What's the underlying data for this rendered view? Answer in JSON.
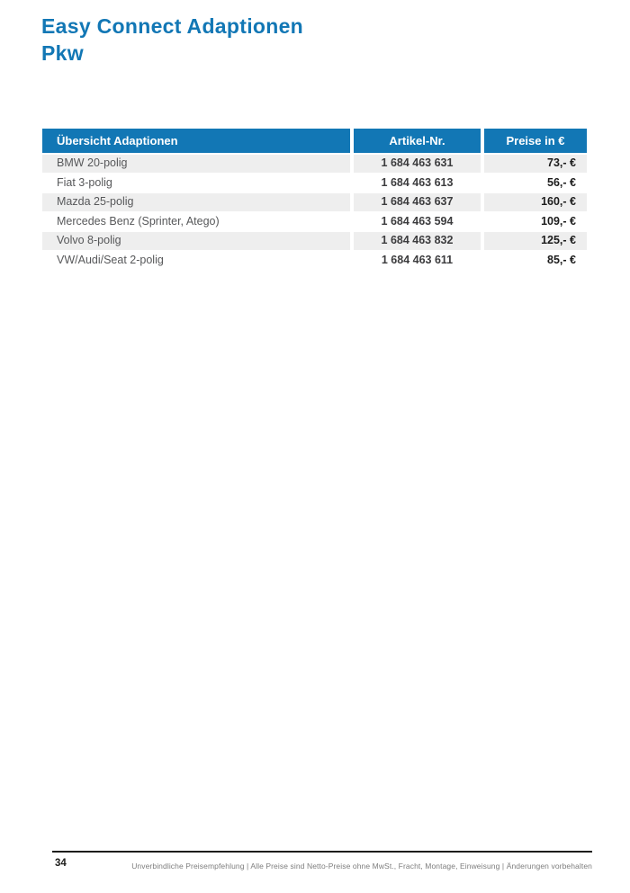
{
  "page": {
    "title_line1": "Easy Connect Adaptionen",
    "title_line2": "Pkw",
    "page_number": "34",
    "footer_note": "Unverbindliche Preisempfehlung | Alle Preise sind Netto-Preise ohne MwSt., Fracht, Montage, Einweisung | Änderungen vorbehalten"
  },
  "colors": {
    "brand_blue": "#1277b5",
    "row_stripe_gray": "#eeeeee",
    "header_text": "#ffffff",
    "body_text": "#57585a",
    "bold_text": "#1c1c1c",
    "footer_text": "#7d7d7d"
  },
  "table": {
    "headers": [
      "Übersicht Adaptionen",
      "Artikel-Nr.",
      "Preise in €"
    ],
    "rows": [
      {
        "name": "BMW 20-polig",
        "artikel_nr": "1 684 463 631",
        "preis": "73,- €"
      },
      {
        "name": "Fiat 3-polig",
        "artikel_nr": "1 684 463 613",
        "preis": "56,- €"
      },
      {
        "name": "Mazda 25-polig",
        "artikel_nr": "1 684 463 637",
        "preis": "160,- €"
      },
      {
        "name": "Mercedes Benz (Sprinter, Atego)",
        "artikel_nr": "1 684 463 594",
        "preis": "109,- €"
      },
      {
        "name": "Volvo 8-polig",
        "artikel_nr": "1 684 463 832",
        "preis": "125,- €"
      },
      {
        "name": "VW/Audi/Seat 2-polig",
        "artikel_nr": "1 684 463 611",
        "preis": "85,- €"
      }
    ]
  }
}
